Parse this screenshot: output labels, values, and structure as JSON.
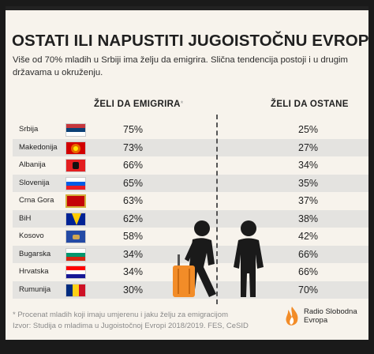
{
  "title": "OSTATI ILI NAPUSTITI JUGOISTOČNU EVROPU?",
  "subtitle": "Više od 70% mladih u Srbiji ima želju da emigrira. Slična tendencija postoji i u drugim državama u okruženju.",
  "columns": {
    "emigrate": "ŽELI DA EMIGRIRA",
    "emigrate_mark": "*",
    "stay": "ŽELI DA OSTANE"
  },
  "footnote": "* Procenat mladih koji imaju umjerenu i jaku želju za emigracijom",
  "source": "Izvor: Studija o mladima u Jugoistočnoj Evropi 2018/2019. FES, CeSID",
  "logo": {
    "line1": "Radio Slobodna",
    "line2": "Evropa"
  },
  "colors": {
    "background": "#f7f3ec",
    "shaded_row": "#e4e3e0",
    "text": "#1f1f1f",
    "suitcase": "#f28c28",
    "figures": "#1a1a1a",
    "logo_accent": "#f28c28"
  },
  "flags": [
    {
      "name": "serbia-flag",
      "stripes": [
        "#c6363c",
        "#0c4076",
        "#ffffff"
      ],
      "orientation": "horizontal"
    },
    {
      "name": "north-macedonia-flag",
      "stripes": [
        "#d20000"
      ],
      "emblem": "sun-yellow"
    },
    {
      "name": "albania-flag",
      "stripes": [
        "#e41e20"
      ],
      "emblem": "eagle-black"
    },
    {
      "name": "slovenia-flag",
      "stripes": [
        "#ffffff",
        "#005ce6",
        "#ed1c24"
      ],
      "orientation": "horizontal"
    },
    {
      "name": "montenegro-flag",
      "stripes": [
        "#c40308"
      ],
      "border": "#d3ae3b"
    },
    {
      "name": "bih-flag",
      "stripes": [
        "#002395"
      ],
      "emblem": "yellow-triangle"
    },
    {
      "name": "kosovo-flag",
      "stripes": [
        "#244aa5"
      ],
      "emblem": "map-gold"
    },
    {
      "name": "bulgaria-flag",
      "stripes": [
        "#ffffff",
        "#00966e",
        "#d62612"
      ],
      "orientation": "horizontal"
    },
    {
      "name": "croatia-flag",
      "stripes": [
        "#ff0000",
        "#ffffff",
        "#171796"
      ],
      "orientation": "horizontal"
    },
    {
      "name": "romania-flag",
      "stripes": [
        "#002b7f",
        "#fcd116",
        "#ce1126"
      ],
      "orientation": "vertical"
    }
  ],
  "chart_data": {
    "type": "table",
    "columns": [
      "ŽELI DA EMIGRIRA",
      "ŽELI DA OSTANE"
    ],
    "rows": [
      {
        "country": "Srbija",
        "emigrate": "75%",
        "stay": "25%"
      },
      {
        "country": "Makedonija",
        "emigrate": "73%",
        "stay": "27%"
      },
      {
        "country": "Albanija",
        "emigrate": "66%",
        "stay": "34%"
      },
      {
        "country": "Slovenija",
        "emigrate": "65%",
        "stay": "35%"
      },
      {
        "country": "Crna Gora",
        "emigrate": "63%",
        "stay": "37%"
      },
      {
        "country": "BiH",
        "emigrate": "62%",
        "stay": "38%"
      },
      {
        "country": "Kosovo",
        "emigrate": "58%",
        "stay": "42%"
      },
      {
        "country": "Bugarska",
        "emigrate": "34%",
        "stay": "66%"
      },
      {
        "country": "Hrvatska",
        "emigrate": "34%",
        "stay": "66%"
      },
      {
        "country": "Rumunija",
        "emigrate": "30%",
        "stay": "70%"
      }
    ]
  }
}
